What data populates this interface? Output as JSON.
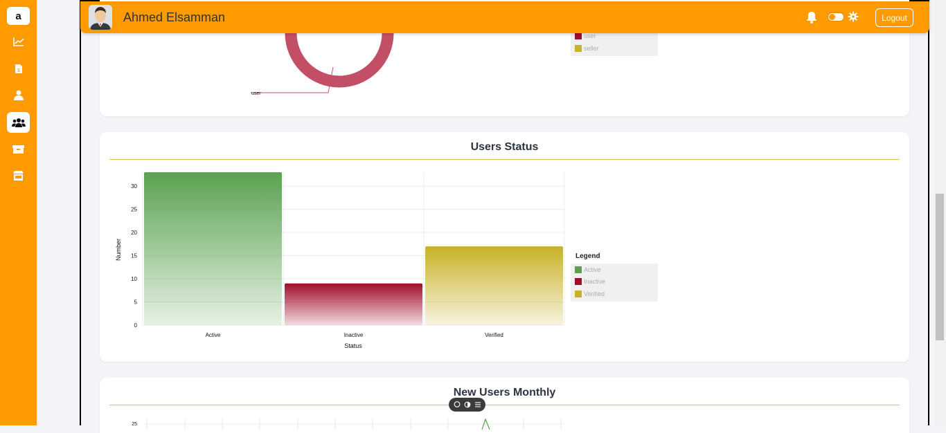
{
  "app": {
    "logo_letter": "a"
  },
  "sidebar": {
    "items": [
      {
        "icon": "line-chart-icon"
      },
      {
        "icon": "invoice-icon"
      },
      {
        "icon": "user-icon"
      },
      {
        "icon": "users-icon",
        "active": true
      },
      {
        "icon": "box-icon"
      },
      {
        "icon": "store-icon"
      }
    ]
  },
  "topbar": {
    "user_name": "Ahmed Elsamman",
    "logout_label": "Logout",
    "icons": [
      "bell-icon",
      "theme-toggle",
      "gear-icon"
    ]
  },
  "top_card": {
    "slice_label": "user",
    "legend": [
      {
        "label": "user",
        "color": "#a10d2a"
      },
      {
        "label": "seller",
        "color": "#c9b227"
      }
    ]
  },
  "status_card": {
    "title": "Users Status",
    "legend_title": "Legend",
    "legend": [
      {
        "label": "Active",
        "color": "#5aa250"
      },
      {
        "label": "Inactive",
        "color": "#a10d2a"
      },
      {
        "label": "Verified",
        "color": "#c9b227"
      }
    ]
  },
  "chart_data": {
    "type": "bar",
    "categories": [
      "Active",
      "Inactive",
      "Verified"
    ],
    "values": [
      33,
      9,
      17
    ],
    "colors": [
      "#5aa250",
      "#a10d2a",
      "#c9b227"
    ],
    "xlabel": "Status",
    "ylabel": "Number",
    "yticks": [
      0,
      5,
      10,
      15,
      20,
      25,
      30
    ],
    "ylim": [
      0,
      33
    ],
    "grid": true,
    "legend_position": "right"
  },
  "monthly_card": {
    "title": "New Users Monthly",
    "first_tick": "25"
  },
  "colors": {
    "accent": "#ff9a00",
    "rule": "#e6c642"
  }
}
